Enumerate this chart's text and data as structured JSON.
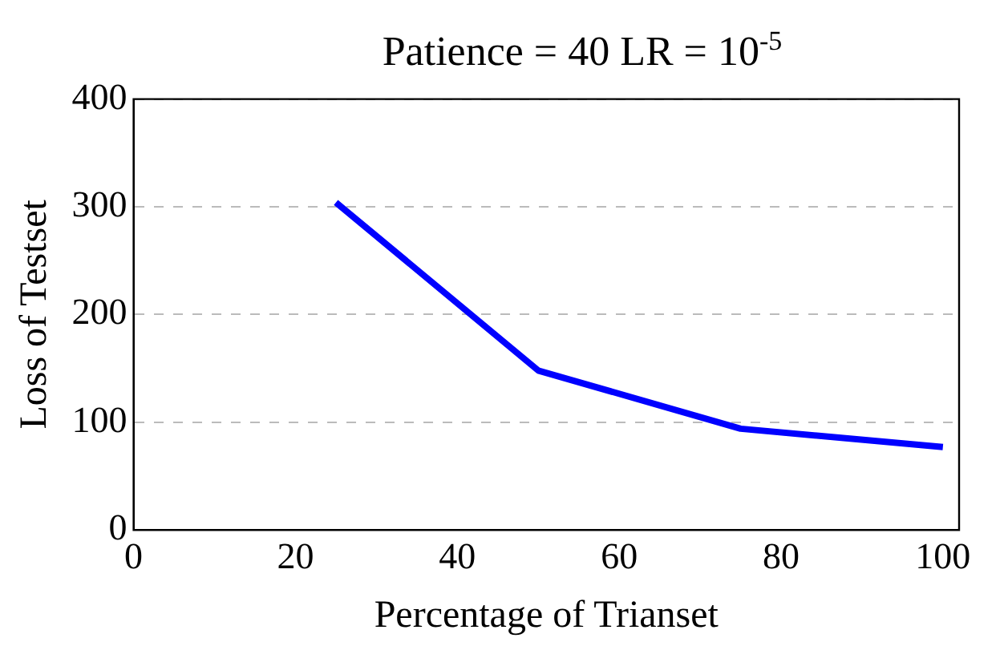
{
  "chart_data": {
    "type": "line",
    "title": "Patience = 40 LR = 10$^{-5}$",
    "xlabel": "Percentage of Trianset",
    "ylabel": "Loss of Testset",
    "x": [
      25,
      50,
      75,
      100
    ],
    "series": [
      {
        "color": "#0000ff",
        "values": [
          304,
          148,
          94,
          77
        ]
      }
    ],
    "xlim": [
      0,
      102
    ],
    "xticks": [
      0,
      20,
      40,
      60,
      80,
      100
    ],
    "ylim": [
      0,
      400
    ],
    "yticks": [
      0,
      100,
      200,
      300,
      400
    ],
    "grid": "y",
    "legend": false,
    "marker": "none",
    "line_style": "solid"
  }
}
